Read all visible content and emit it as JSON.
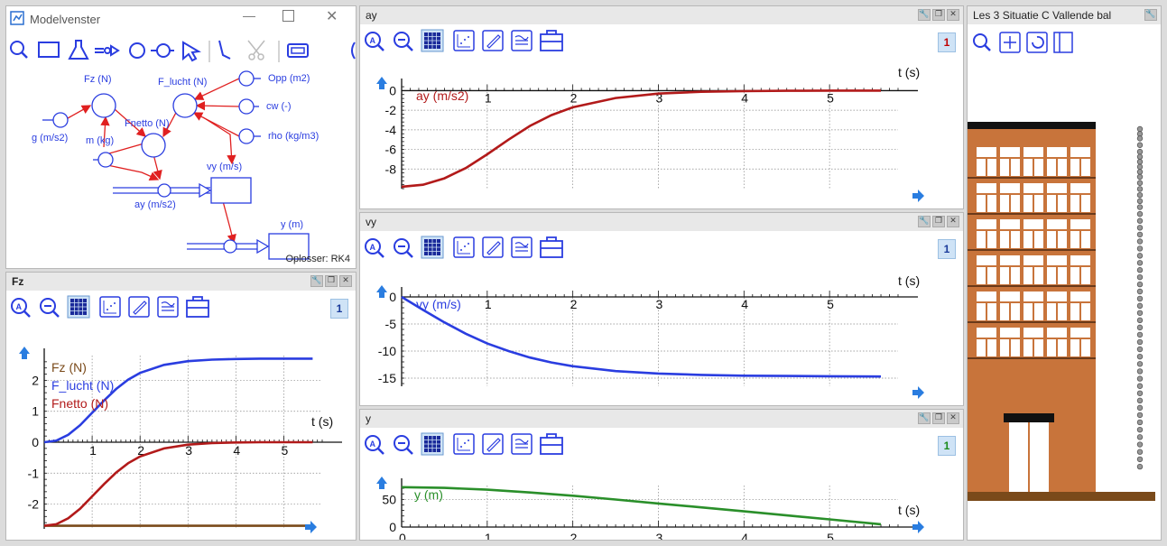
{
  "colors": {
    "accent_blue": "#2a3de0",
    "red": "#b21a1a",
    "green": "#2a8f2a",
    "brown": "#7a4a1a",
    "building": "#c8743b",
    "badge_red": "#c00000",
    "badge_blue": "#1a3a9a",
    "badge_green": "#1a8a1a"
  },
  "model_window": {
    "title": "Modelvenster",
    "solver": "Oplosser: RK4",
    "nodes": {
      "fz": "Fz (N)",
      "f_lucht": "F_lucht (N)",
      "opp": "Opp (m2)",
      "cw": "cw (-)",
      "rho": "rho (kg/m3)",
      "g": "g (m/s2)",
      "m": "m (kg)",
      "fnetto": "Fnetto (N)",
      "vy": "vy (m/s)",
      "ay": "ay (m/s2)",
      "y": "y (m)"
    },
    "tools": [
      "search-icon",
      "rectangle-icon",
      "flask-icon",
      "flow-arrow-icon",
      "circle-icon",
      "circle-connector-icon",
      "select-arrow-icon",
      "connector-icon",
      "scissors-icon",
      "display-icon"
    ]
  },
  "graph_tools": [
    "zoom-auto-icon",
    "zoom-out-icon",
    "grid-icon",
    "scatter-icon",
    "pen-icon",
    "table-icon",
    "toolbox-icon"
  ],
  "chart_data": [
    {
      "id": "fz",
      "title": "Fz",
      "page": "1",
      "type": "line",
      "xlabel": "t (s)",
      "xlim": [
        0,
        5.8
      ],
      "ylim": [
        -2.8,
        2.8
      ],
      "xticks": [
        1,
        2,
        3,
        4,
        5
      ],
      "yticks": [
        -2,
        -1,
        0,
        1,
        2
      ],
      "ytick_labels": [
        "-2",
        "-1",
        "0",
        "1",
        "2"
      ],
      "series": [
        {
          "name": "Fz (N)",
          "color": "#7a4a1a",
          "x": [
            0,
            5.6
          ],
          "y": [
            -2.7,
            -2.7
          ]
        },
        {
          "name": "F_lucht (N)",
          "color": "#2a3de0",
          "x": [
            0,
            0.25,
            0.5,
            0.75,
            1,
            1.25,
            1.5,
            1.75,
            2,
            2.5,
            3,
            3.5,
            4,
            4.5,
            5,
            5.6
          ],
          "y": [
            0,
            0.05,
            0.24,
            0.55,
            0.95,
            1.35,
            1.72,
            2.02,
            2.24,
            2.5,
            2.62,
            2.67,
            2.69,
            2.7,
            2.7,
            2.7
          ]
        },
        {
          "name": "Fnetto (N)",
          "color": "#b21a1a",
          "x": [
            0,
            0.25,
            0.5,
            0.75,
            1,
            1.25,
            1.5,
            1.75,
            2,
            2.5,
            3,
            3.5,
            4,
            4.5,
            5,
            5.6
          ],
          "y": [
            -2.7,
            -2.65,
            -2.46,
            -2.15,
            -1.75,
            -1.35,
            -0.98,
            -0.68,
            -0.46,
            -0.2,
            -0.08,
            -0.03,
            -0.01,
            0,
            0,
            0
          ]
        }
      ]
    },
    {
      "id": "ay",
      "title": "ay",
      "page": "1",
      "type": "line",
      "xlabel": "t (s)",
      "xlim": [
        0,
        5.8
      ],
      "ylim": [
        -10,
        0.5
      ],
      "xticks": [
        1,
        2,
        3,
        4,
        5
      ],
      "yticks": [
        0,
        -2,
        -4,
        -6,
        -8
      ],
      "ytick_labels": [
        "0",
        "-2",
        "-4",
        "-6",
        "-8"
      ],
      "series": [
        {
          "name": "ay (m/s2)",
          "color": "#b21a1a",
          "x": [
            0,
            0.25,
            0.5,
            0.75,
            1,
            1.25,
            1.5,
            1.75,
            2,
            2.5,
            3,
            3.5,
            4,
            4.5,
            5,
            5.6
          ],
          "y": [
            -9.81,
            -9.6,
            -8.95,
            -7.9,
            -6.5,
            -5.0,
            -3.6,
            -2.5,
            -1.7,
            -0.75,
            -0.3,
            -0.12,
            -0.05,
            -0.02,
            0,
            0
          ]
        }
      ]
    },
    {
      "id": "vy",
      "title": "vy",
      "page": "1",
      "type": "line",
      "xlabel": "t (s)",
      "xlim": [
        0,
        5.8
      ],
      "ylim": [
        -16.5,
        0.5
      ],
      "xticks": [
        1,
        2,
        3,
        4,
        5
      ],
      "yticks": [
        0,
        -5,
        -10,
        -15
      ],
      "ytick_labels": [
        "0",
        "-5",
        "-10",
        "-15"
      ],
      "series": [
        {
          "name": "vy (m/s)",
          "color": "#2a3de0",
          "x": [
            0,
            0.25,
            0.5,
            0.75,
            1,
            1.25,
            1.5,
            1.75,
            2,
            2.5,
            3,
            3.5,
            4,
            4.5,
            5,
            5.6
          ],
          "y": [
            0,
            -2.4,
            -4.7,
            -6.8,
            -8.6,
            -10.0,
            -11.2,
            -12.1,
            -12.8,
            -13.7,
            -14.15,
            -14.4,
            -14.55,
            -14.6,
            -14.65,
            -14.7
          ]
        }
      ]
    },
    {
      "id": "y",
      "title": "y",
      "page": "1",
      "type": "line",
      "xlabel": "t (s)",
      "xlim": [
        0,
        5.8
      ],
      "ylim": [
        0,
        75
      ],
      "xticks": [
        0,
        1,
        2,
        3,
        4,
        5
      ],
      "yticks": [
        0,
        50
      ],
      "ytick_labels": [
        "0",
        "50"
      ],
      "series": [
        {
          "name": "y (m)",
          "color": "#2a8f2a",
          "x": [
            0,
            0.5,
            1,
            1.5,
            2,
            2.5,
            3,
            3.5,
            4,
            4.5,
            5,
            5.6
          ],
          "y": [
            72,
            70.8,
            67.5,
            62.5,
            56.5,
            49.7,
            42.6,
            35.5,
            28.3,
            21,
            13.8,
            5
          ]
        }
      ]
    }
  ],
  "animation_window": {
    "title": "Les 3 Situatie C Vallende bal",
    "tools": [
      "search-icon",
      "fit-icon",
      "rotate-icon",
      "panel-icon"
    ]
  }
}
